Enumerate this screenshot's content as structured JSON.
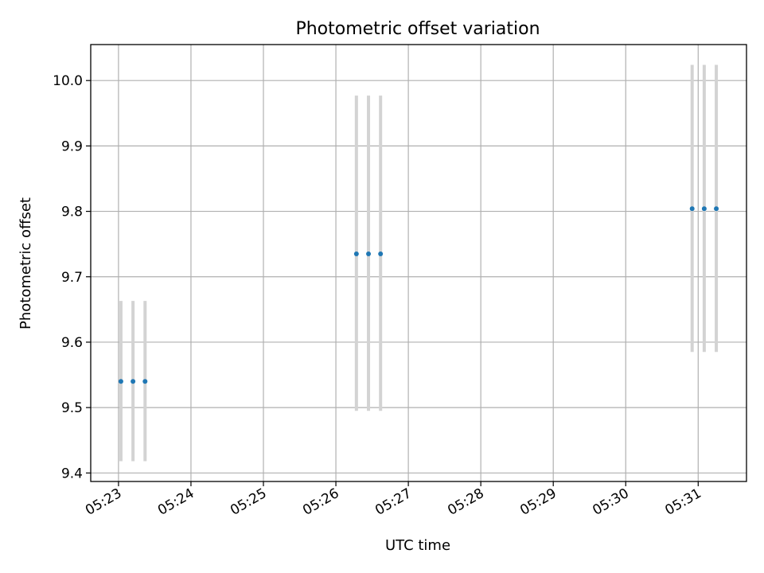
{
  "chart_data": {
    "type": "scatter",
    "title": "Photometric offset variation",
    "xlabel": "UTC time",
    "ylabel": "Photometric offset",
    "x_ticks": [
      "05:23",
      "05:24",
      "05:25",
      "05:26",
      "05:27",
      "05:28",
      "05:29",
      "05:30",
      "05:31"
    ],
    "y_ticks": [
      "9.4",
      "9.5",
      "9.6",
      "9.7",
      "9.8",
      "9.9",
      "10.0"
    ],
    "xlim": [
      "05:22:37",
      "05:31:40"
    ],
    "ylim": [
      9.387,
      10.055
    ],
    "grid": true,
    "points": [
      {
        "x": "05:23:02",
        "y": 9.54,
        "yerr_low": 9.418,
        "yerr_high": 9.663
      },
      {
        "x": "05:23:12",
        "y": 9.54,
        "yerr_low": 9.418,
        "yerr_high": 9.663
      },
      {
        "x": "05:23:22",
        "y": 9.54,
        "yerr_low": 9.418,
        "yerr_high": 9.663
      },
      {
        "x": "05:26:17",
        "y": 9.735,
        "yerr_low": 9.495,
        "yerr_high": 9.977
      },
      {
        "x": "05:26:27",
        "y": 9.735,
        "yerr_low": 9.495,
        "yerr_high": 9.977
      },
      {
        "x": "05:26:37",
        "y": 9.735,
        "yerr_low": 9.495,
        "yerr_high": 9.977
      },
      {
        "x": "05:30:55",
        "y": 9.804,
        "yerr_low": 9.585,
        "yerr_high": 10.024
      },
      {
        "x": "05:31:05",
        "y": 9.804,
        "yerr_low": 9.585,
        "yerr_high": 10.024
      },
      {
        "x": "05:31:15",
        "y": 9.804,
        "yerr_low": 9.585,
        "yerr_high": 10.024
      }
    ],
    "colors": {
      "point": "#1f77b4",
      "errorbar": "#d3d3d3",
      "grid": "#b0b0b0"
    }
  }
}
